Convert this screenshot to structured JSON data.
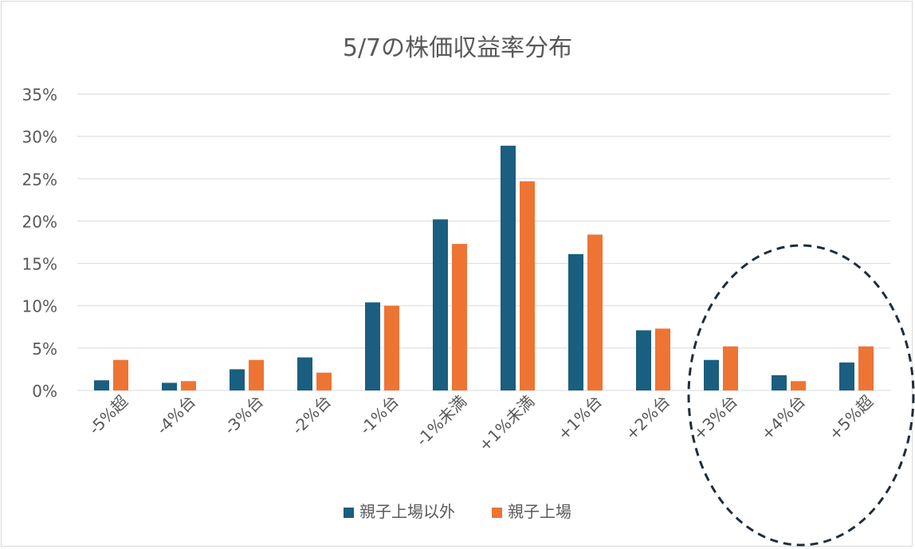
{
  "chart_data": {
    "type": "bar",
    "title": "5/7の株価収益率分布",
    "categories": [
      "-5%超",
      "-4%台",
      "-3%台",
      "-2%台",
      "-1%台",
      "-1%未満",
      "+1%未満",
      "+1%台",
      "+2%台",
      "+3%台",
      "+4%台",
      "+5%超"
    ],
    "series": [
      {
        "name": "親子上場以外",
        "color": "#1a5e80",
        "values": [
          1.2,
          0.9,
          2.5,
          3.9,
          10.4,
          20.2,
          28.9,
          16.1,
          7.1,
          3.6,
          1.8,
          3.3
        ]
      },
      {
        "name": "親子上場",
        "color": "#ee7434",
        "values": [
          3.6,
          1.1,
          3.6,
          2.1,
          10.0,
          17.3,
          24.7,
          18.4,
          7.3,
          5.2,
          1.1,
          5.2
        ]
      }
    ],
    "ylim": [
      0,
      35
    ],
    "yticks": [
      "0%",
      "5%",
      "10%",
      "15%",
      "20%",
      "25%",
      "30%",
      "35%"
    ],
    "ytick_values": [
      0,
      5,
      10,
      15,
      20,
      25,
      30,
      35
    ],
    "grid": true,
    "legend": "bottom",
    "annotation": {
      "shape": "dashed-ellipse",
      "highlights": [
        "+3%台",
        "+4%台",
        "+5%超"
      ],
      "color": "#1f2d3d"
    }
  }
}
